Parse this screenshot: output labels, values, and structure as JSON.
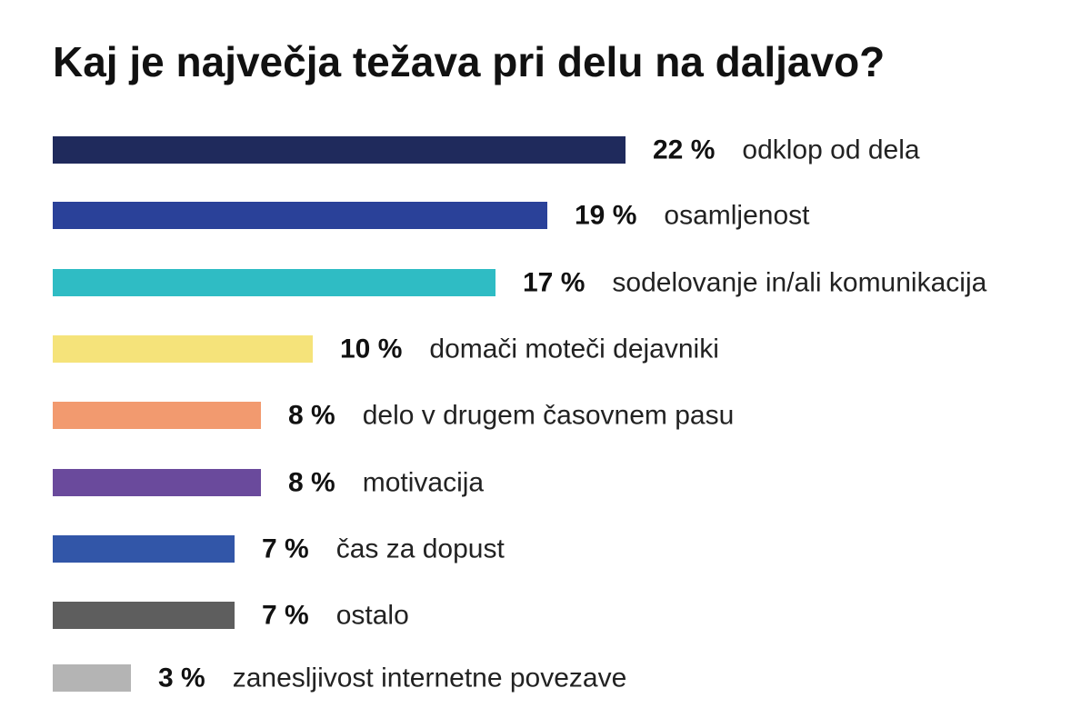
{
  "chart_data": {
    "type": "bar",
    "orientation": "horizontal",
    "title": "Kaj je največja težava pri delu na daljavo?",
    "categories": [
      "odklop od dela",
      "osamljenost",
      "sodelovanje in/ali komunikacija",
      "domači moteči dejavniki",
      "delo v drugem časovnem pasu",
      "motivacija",
      "čas za dopust",
      "ostalo",
      "zanesljivost internetne povezave"
    ],
    "values": [
      22,
      19,
      17,
      10,
      8,
      8,
      7,
      7,
      3
    ],
    "value_labels": [
      "22 %",
      "19 %",
      "17 %",
      "10 %",
      "8 %",
      "8 %",
      "7 %",
      "7 %",
      "3 %"
    ],
    "colors": [
      "#1f2a5c",
      "#2a4199",
      "#2fbcc4",
      "#f5e37a",
      "#f29a6f",
      "#6a4a9c",
      "#3256a8",
      "#5e5e5e",
      "#b4b4b4"
    ],
    "value_unit": "%",
    "xlim": [
      0,
      22
    ],
    "grid": false,
    "legend": "none"
  }
}
